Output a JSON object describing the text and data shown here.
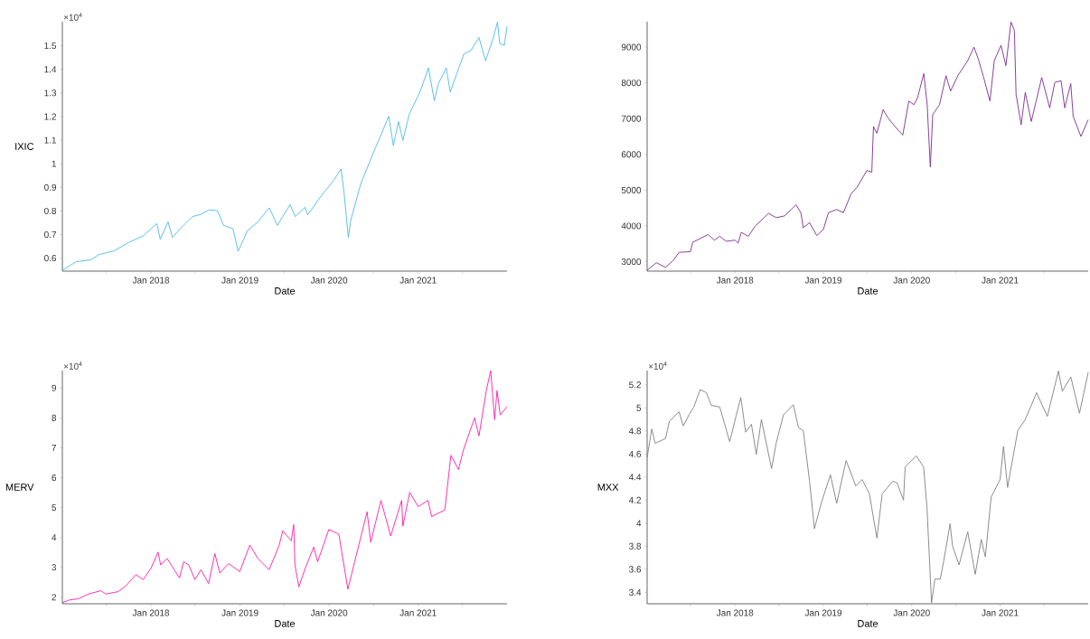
{
  "chart_data": [
    {
      "type": "line",
      "color": "#4db8e8",
      "xlabel": "Date",
      "ylabel": "IXIC",
      "annotations": [
        "×10$^{4}$"
      ],
      "xlim": [
        "2017-01-03",
        "2021-12-31"
      ],
      "ylim": [
        0.545,
        1.602
      ],
      "xticks": [
        {
          "value": "2017-07-01",
          "label": null
        },
        {
          "value": "2018-01-01",
          "label": "Jan 2018"
        },
        {
          "value": "2018-07-01",
          "label": null
        },
        {
          "value": "2019-01-01",
          "label": "Jan 2019"
        },
        {
          "value": "2019-07-01",
          "label": null
        },
        {
          "value": "2020-01-01",
          "label": "Jan 2020"
        },
        {
          "value": "2020-07-01",
          "label": null
        },
        {
          "value": "2021-01-01",
          "label": "Jan 2021"
        },
        {
          "value": "2021-07-01",
          "label": null
        }
      ],
      "yticks": [
        0.6,
        0.7,
        0.8,
        0.9,
        1,
        1.1,
        1.2,
        1.3,
        1.4,
        1.5
      ],
      "x": [
        "2017-01-03",
        "2017-03-01",
        "2017-05-01",
        "2017-06-01",
        "2017-08-01",
        "2017-10-01",
        "2017-12-01",
        "2018-01-25",
        "2018-02-08",
        "2018-03-12",
        "2018-03-30",
        "2018-05-01",
        "2018-06-20",
        "2018-07-25",
        "2018-08-28",
        "2018-10-01",
        "2018-10-25",
        "2018-12-03",
        "2018-12-24",
        "2019-02-01",
        "2019-03-15",
        "2019-05-01",
        "2019-06-03",
        "2019-07-25",
        "2019-08-15",
        "2019-09-25",
        "2019-10-05",
        "2019-11-30",
        "2020-01-20",
        "2020-02-19",
        "2020-03-03",
        "2020-03-20",
        "2020-03-30",
        "2020-05-10",
        "2020-07-01",
        "2020-09-02",
        "2020-09-21",
        "2020-10-12",
        "2020-10-30",
        "2020-11-25",
        "2021-01-08",
        "2021-02-12",
        "2021-03-08",
        "2021-03-25",
        "2021-04-26",
        "2021-05-12",
        "2021-07-07",
        "2021-08-05",
        "2021-09-07",
        "2021-10-04",
        "2021-11-05",
        "2021-11-22",
        "2021-12-01",
        "2021-12-20",
        "2021-12-31"
      ],
      "values": [
        0.549,
        0.585,
        0.593,
        0.615,
        0.63,
        0.666,
        0.695,
        0.747,
        0.68,
        0.754,
        0.688,
        0.725,
        0.776,
        0.786,
        0.805,
        0.801,
        0.739,
        0.725,
        0.629,
        0.717,
        0.754,
        0.813,
        0.739,
        0.827,
        0.776,
        0.816,
        0.783,
        0.864,
        0.93,
        0.978,
        0.871,
        0.688,
        0.761,
        0.915,
        1.047,
        1.201,
        1.077,
        1.179,
        1.099,
        1.209,
        1.304,
        1.406,
        1.267,
        1.34,
        1.406,
        1.304,
        1.465,
        1.48,
        1.535,
        1.436,
        1.534,
        1.6,
        1.509,
        1.502,
        1.582
      ]
    },
    {
      "type": "line",
      "color": "#7b2d8e",
      "xlabel": "Date",
      "xlim": [
        "2017-01-03",
        "2021-12-31"
      ],
      "ylim": [
        2735,
        9710
      ],
      "xticks": [
        {
          "value": "2017-07-01",
          "label": null
        },
        {
          "value": "2018-01-01",
          "label": "Jan 2018"
        },
        {
          "value": "2018-07-01",
          "label": null
        },
        {
          "value": "2019-01-01",
          "label": "Jan 2019"
        },
        {
          "value": "2019-07-01",
          "label": null
        },
        {
          "value": "2020-01-01",
          "label": "Jan 2020"
        },
        {
          "value": "2020-07-01",
          "label": null
        },
        {
          "value": "2021-01-01",
          "label": "Jan 2021"
        },
        {
          "value": "2021-07-01",
          "label": null
        }
      ],
      "yticks": [
        3000,
        4000,
        5000,
        6000,
        7000,
        8000,
        9000
      ],
      "x": [
        "2017-01-03",
        "2017-02-10",
        "2017-03-20",
        "2017-04-20",
        "2017-05-15",
        "2017-07-01",
        "2017-07-10",
        "2017-09-12",
        "2017-10-08",
        "2017-10-30",
        "2017-11-25",
        "2018-01-01",
        "2018-01-14",
        "2018-01-27",
        "2018-02-25",
        "2018-03-25",
        "2018-05-20",
        "2018-06-20",
        "2018-07-25",
        "2018-09-10",
        "2018-09-30",
        "2018-10-10",
        "2018-11-05",
        "2018-12-05",
        "2019-01-01",
        "2019-01-22",
        "2019-02-25",
        "2019-03-25",
        "2019-04-25",
        "2019-05-20",
        "2019-06-30",
        "2019-07-20",
        "2019-07-27",
        "2019-08-10",
        "2019-09-05",
        "2019-09-25",
        "2019-10-30",
        "2019-11-25",
        "2019-12-20",
        "2020-01-10",
        "2020-01-25",
        "2020-02-20",
        "2020-03-05",
        "2020-03-18",
        "2020-03-28",
        "2020-04-25",
        "2020-05-22",
        "2020-06-10",
        "2020-07-10",
        "2020-08-20",
        "2020-09-15",
        "2020-10-05",
        "2020-10-25",
        "2020-11-20",
        "2020-12-08",
        "2021-01-05",
        "2021-01-25",
        "2021-02-15",
        "2021-03-01",
        "2021-03-08",
        "2021-03-29",
        "2021-04-15",
        "2021-05-10",
        "2021-05-30",
        "2021-06-22",
        "2021-07-25",
        "2021-08-15",
        "2021-09-10",
        "2021-09-25",
        "2021-10-20",
        "2021-10-30",
        "2021-12-01",
        "2021-12-31"
      ],
      "values": [
        2760,
        2970,
        2840,
        3030,
        3260,
        3280,
        3540,
        3760,
        3600,
        3710,
        3570,
        3600,
        3520,
        3820,
        3710,
        3990,
        4350,
        4230,
        4280,
        4590,
        4370,
        3950,
        4090,
        3730,
        3900,
        4370,
        4460,
        4370,
        4890,
        5080,
        5550,
        5500,
        6780,
        6590,
        7250,
        7020,
        6730,
        6540,
        7490,
        7390,
        7580,
        8260,
        7390,
        5650,
        7110,
        7390,
        8200,
        7770,
        8200,
        8620,
        9000,
        8620,
        8150,
        7490,
        8620,
        9050,
        8480,
        9700,
        9470,
        7680,
        6830,
        7730,
        6920,
        7490,
        8150,
        7300,
        8010,
        8060,
        7300,
        7980,
        7060,
        6500,
        6970
      ]
    },
    {
      "type": "line",
      "color": "#ff1aab",
      "xlabel": "Date",
      "ylabel": "MERV",
      "annotations": [
        "×10$^{4}$"
      ],
      "xlim": [
        "2017-01-03",
        "2021-12-31"
      ],
      "ylim": [
        1.784,
        9.583
      ],
      "xticks": [
        {
          "value": "2017-07-01",
          "label": null
        },
        {
          "value": "2018-01-01",
          "label": "Jan 2018"
        },
        {
          "value": "2018-07-01",
          "label": null
        },
        {
          "value": "2019-01-01",
          "label": "Jan 2019"
        },
        {
          "value": "2019-07-01",
          "label": null
        },
        {
          "value": "2020-01-01",
          "label": "Jan 2020"
        },
        {
          "value": "2020-07-01",
          "label": null
        },
        {
          "value": "2021-01-01",
          "label": "Jan 2021"
        },
        {
          "value": "2021-07-01",
          "label": null
        }
      ],
      "yticks": [
        2,
        3,
        4,
        5,
        6,
        7,
        8,
        9
      ],
      "x": [
        "2017-01-03",
        "2017-02-01",
        "2017-03-10",
        "2017-04-20",
        "2017-06-10",
        "2017-07-01",
        "2017-08-20",
        "2017-09-20",
        "2017-11-01",
        "2017-11-30",
        "2018-01-01",
        "2018-01-30",
        "2018-02-10",
        "2018-03-08",
        "2018-04-28",
        "2018-05-15",
        "2018-06-05",
        "2018-06-30",
        "2018-07-25",
        "2018-08-25",
        "2018-09-20",
        "2018-10-10",
        "2018-11-15",
        "2018-12-31",
        "2019-02-10",
        "2019-03-15",
        "2019-04-30",
        "2019-06-10",
        "2019-06-25",
        "2019-07-30",
        "2019-08-09",
        "2019-08-14",
        "2019-08-30",
        "2019-09-25",
        "2019-10-30",
        "2019-11-15",
        "2019-12-31",
        "2020-02-10",
        "2020-03-18",
        "2020-04-15",
        "2020-06-05",
        "2020-06-20",
        "2020-08-01",
        "2020-09-10",
        "2020-10-25",
        "2020-10-30",
        "2020-11-27",
        "2021-01-01",
        "2021-02-10",
        "2021-02-25",
        "2021-04-20",
        "2021-05-15",
        "2021-06-15",
        "2021-07-05",
        "2021-08-20",
        "2021-09-07",
        "2021-10-07",
        "2021-10-25",
        "2021-11-10",
        "2021-11-20",
        "2021-12-03",
        "2021-12-31"
      ],
      "values": [
        1.82,
        1.91,
        1.95,
        2.11,
        2.22,
        2.11,
        2.19,
        2.38,
        2.76,
        2.59,
        2.97,
        3.51,
        3.08,
        3.3,
        2.65,
        3.19,
        3.08,
        2.59,
        2.92,
        2.46,
        3.46,
        2.81,
        3.13,
        2.86,
        3.75,
        3.3,
        2.92,
        3.73,
        4.22,
        3.89,
        4.43,
        3.08,
        2.35,
        2.97,
        3.68,
        3.19,
        4.27,
        4.11,
        2.27,
        3.19,
        4.86,
        3.84,
        5.24,
        4.05,
        5.24,
        4.38,
        5.51,
        5.03,
        5.24,
        4.7,
        4.92,
        6.75,
        6.27,
        6.92,
        8,
        7.4,
        8.91,
        9.58,
        7.94,
        8.91,
        8.1,
        8.37
      ]
    },
    {
      "type": "line",
      "color": "#808080",
      "xlabel": "Date",
      "ylabel": "MXX",
      "annotations": [
        "×10$^{4}$"
      ],
      "xlim": [
        "2017-01-03",
        "2021-12-31"
      ],
      "ylim": [
        3.301,
        5.324
      ],
      "xticks": [
        {
          "value": "2017-07-01",
          "label": null
        },
        {
          "value": "2018-01-01",
          "label": "Jan 2018"
        },
        {
          "value": "2018-07-01",
          "label": null
        },
        {
          "value": "2019-01-01",
          "label": "Jan 2019"
        },
        {
          "value": "2019-07-01",
          "label": null
        },
        {
          "value": "2020-01-01",
          "label": "Jan 2020"
        },
        {
          "value": "2020-07-01",
          "label": null
        },
        {
          "value": "2021-01-01",
          "label": "Jan 2021"
        },
        {
          "value": "2021-07-01",
          "label": null
        }
      ],
      "yticks": [
        3.4,
        3.6,
        3.8,
        4,
        4.2,
        4.4,
        4.6,
        4.8,
        5,
        5.2
      ],
      "x": [
        "2017-01-03",
        "2017-01-22",
        "2017-02-05",
        "2017-03-20",
        "2017-04-05",
        "2017-05-15",
        "2017-06-01",
        "2017-06-25",
        "2017-07-15",
        "2017-08-10",
        "2017-09-05",
        "2017-09-25",
        "2017-10-30",
        "2017-12-10",
        "2018-01-05",
        "2018-01-25",
        "2018-02-14",
        "2018-03-10",
        "2018-03-30",
        "2018-04-20",
        "2018-06-01",
        "2018-06-20",
        "2018-07-20",
        "2018-08-30",
        "2018-09-20",
        "2018-10-10",
        "2018-11-05",
        "2018-11-25",
        "2018-12-25",
        "2019-01-30",
        "2019-02-25",
        "2019-04-05",
        "2019-05-15",
        "2019-06-10",
        "2019-07-10",
        "2019-08-10",
        "2019-09-01",
        "2019-10-15",
        "2019-11-01",
        "2019-11-28",
        "2019-12-05",
        "2020-01-20",
        "2020-02-19",
        "2020-03-04",
        "2020-03-23",
        "2020-04-06",
        "2020-04-28",
        "2020-05-12",
        "2020-06-08",
        "2020-06-18",
        "2020-07-15",
        "2020-08-20",
        "2020-09-20",
        "2020-10-15",
        "2020-11-01",
        "2020-11-25",
        "2021-01-01",
        "2021-01-15",
        "2021-02-01",
        "2021-03-15",
        "2021-04-15",
        "2021-06-01",
        "2021-07-15",
        "2021-08-30",
        "2021-09-15",
        "2021-10-20",
        "2021-11-25",
        "2021-12-31"
      ],
      "values": [
        4.57,
        4.817,
        4.693,
        4.734,
        4.885,
        4.967,
        4.844,
        4.94,
        5.008,
        5.159,
        5.132,
        5.022,
        5.008,
        4.707,
        4.926,
        5.091,
        4.789,
        4.858,
        4.597,
        4.899,
        4.474,
        4.693,
        4.94,
        5.028,
        4.83,
        4.803,
        4.364,
        3.953,
        4.186,
        4.419,
        4.173,
        4.543,
        4.323,
        4.378,
        4.255,
        3.871,
        4.255,
        4.364,
        4.351,
        4.2,
        4.488,
        4.584,
        4.488,
        4.145,
        3.31,
        3.515,
        3.515,
        3.666,
        3.995,
        3.803,
        3.638,
        3.926,
        3.556,
        3.858,
        3.707,
        4.227,
        4.378,
        4.666,
        4.31,
        4.803,
        4.899,
        5.132,
        4.926,
        5.32,
        5.145,
        5.269,
        4.954,
        5.31
      ]
    }
  ]
}
